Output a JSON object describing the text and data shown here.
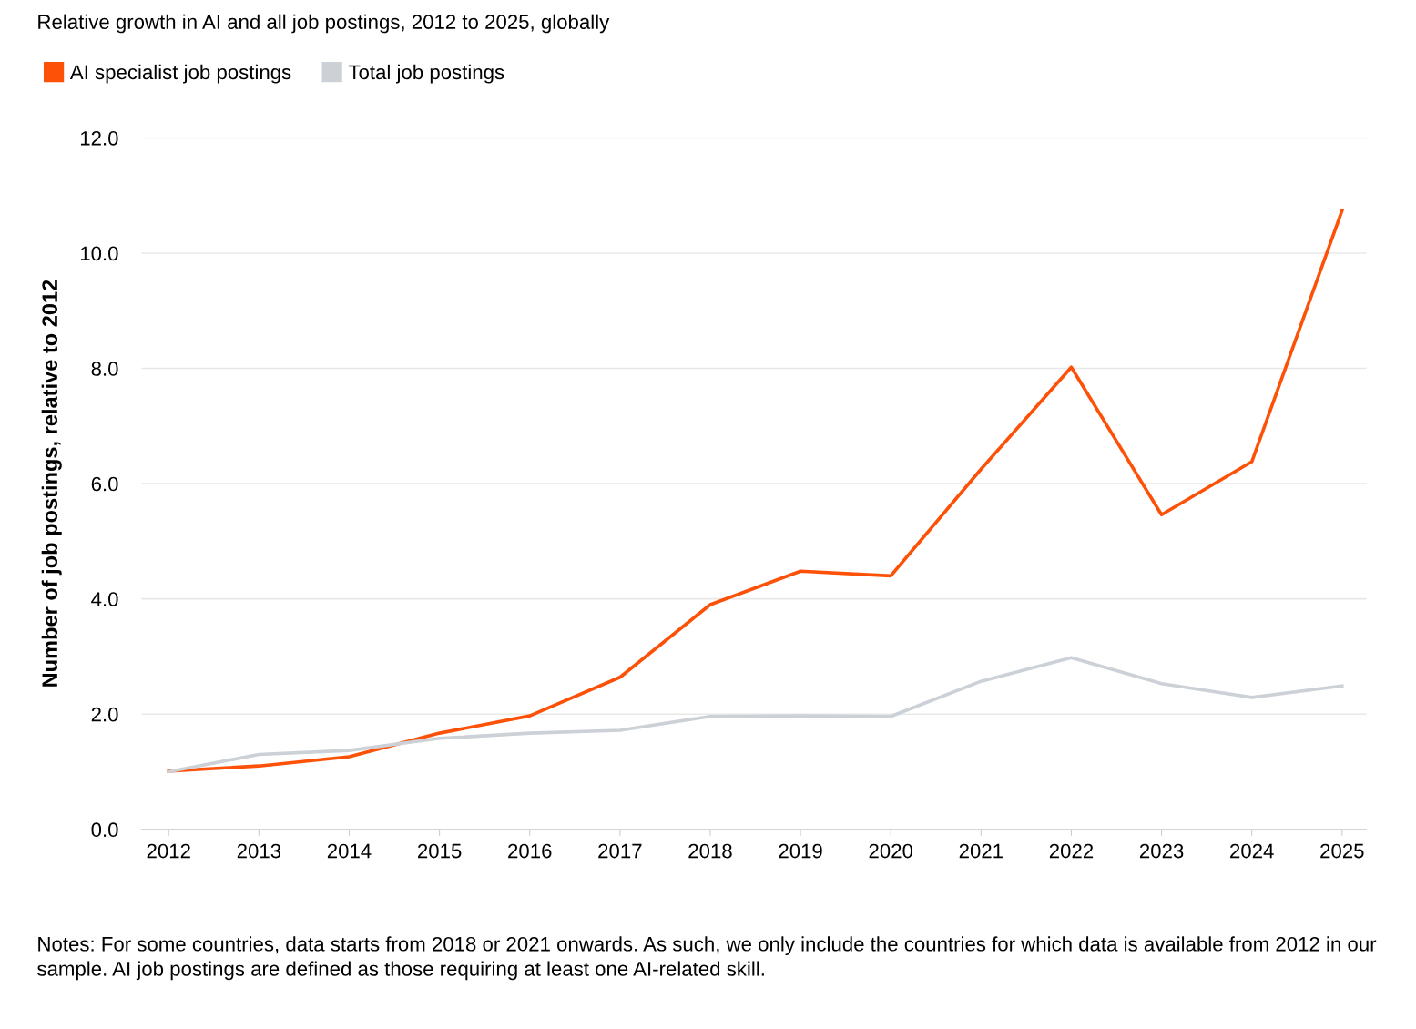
{
  "chart_data": {
    "type": "line",
    "title": "Relative growth in AI and all job postings, 2012 to 2025, globally",
    "ylabel": "Number of job postings, relative to 2012",
    "categories": [
      "2012",
      "2013",
      "2014",
      "2015",
      "2016",
      "2017",
      "2018",
      "2019",
      "2020",
      "2021",
      "2022",
      "2023",
      "2024",
      "2025"
    ],
    "series": [
      {
        "name": "AI specialist job postings",
        "color": "#fd5108",
        "values": [
          1.01,
          1.1,
          1.26,
          1.67,
          1.97,
          2.64,
          3.9,
          4.48,
          4.4,
          6.25,
          8.02,
          5.46,
          6.38,
          10.74
        ]
      },
      {
        "name": "Total job postings",
        "color": "#cbd1d6",
        "values": [
          1.0,
          1.3,
          1.37,
          1.58,
          1.67,
          1.72,
          1.96,
          1.97,
          1.96,
          2.57,
          2.98,
          2.53,
          2.29,
          2.49
        ]
      }
    ],
    "ylim": [
      0,
      12
    ],
    "yticks": [
      {
        "value": 0,
        "label": "0.0"
      },
      {
        "value": 2,
        "label": "2.0"
      },
      {
        "value": 4,
        "label": "4.0"
      },
      {
        "value": 6,
        "label": "6.0"
      },
      {
        "value": 8,
        "label": "8.0"
      },
      {
        "value": 10,
        "label": "10.0"
      },
      {
        "value": 12,
        "label": "12.0"
      }
    ],
    "grid": "y",
    "legend": "top left",
    "marker": "none",
    "line_style": "solid",
    "annotations": [
      "Notes: For some countries, data starts from 2018 or 2021 onwards. As such, we only include the countries for which data is available from 2012 in our sample. AI job postings are defined as those requiring at least one AI-related skill."
    ]
  }
}
